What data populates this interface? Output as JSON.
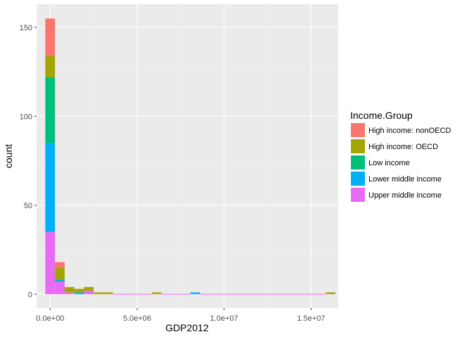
{
  "chart_data": {
    "type": "bar",
    "subtype": "stacked-histogram",
    "xlabel": "GDP2012",
    "ylabel": "count",
    "xlim": [
      -780000,
      16560000
    ],
    "ylim": [
      -7.8,
      163
    ],
    "x_ticks": [
      0,
      5000000,
      10000000,
      15000000
    ],
    "x_tick_labels": [
      "0.0e+00",
      "5.0e+06",
      "1.0e+07",
      "1.5e+07"
    ],
    "y_ticks": [
      0,
      50,
      100,
      150
    ],
    "y_tick_labels": [
      "0",
      "50",
      "100",
      "150"
    ],
    "grid": true,
    "bin_width": 556000,
    "legend": {
      "title": "Income.Group",
      "position": "right",
      "entries": [
        {
          "name": "High income: nonOECD",
          "color": "#F8766D"
        },
        {
          "name": "High income: OECD",
          "color": "#A3A500"
        },
        {
          "name": "Low income",
          "color": "#00BF7D"
        },
        {
          "name": "Lower middle income",
          "color": "#00B0F6"
        },
        {
          "name": "Upper middle income",
          "color": "#E76BF3"
        }
      ]
    },
    "series": [
      {
        "name": "High income: nonOECD",
        "values": [
          21,
          3,
          0,
          0,
          0,
          0,
          0,
          0,
          0,
          0,
          0,
          0,
          0,
          0,
          0,
          0,
          0,
          0,
          0,
          0,
          0,
          0,
          0,
          0,
          0,
          0,
          0,
          0,
          0,
          0
        ]
      },
      {
        "name": "High income: OECD",
        "values": [
          12,
          7,
          3,
          2,
          2,
          1,
          1,
          0,
          0,
          0,
          0,
          1,
          0,
          0,
          0,
          0,
          0,
          0,
          0,
          0,
          0,
          0,
          0,
          0,
          0,
          0,
          0,
          0,
          0,
          1
        ]
      },
      {
        "name": "Low income",
        "values": [
          37,
          0,
          0,
          0,
          0,
          0,
          0,
          0,
          0,
          0,
          0,
          0,
          0,
          0,
          0,
          0,
          0,
          0,
          0,
          0,
          0,
          0,
          0,
          0,
          0,
          0,
          0,
          0,
          0,
          0
        ]
      },
      {
        "name": "Lower middle income",
        "values": [
          50,
          1,
          0,
          1,
          0,
          0,
          0,
          0,
          0,
          0,
          0,
          0,
          0,
          0,
          0,
          1,
          0,
          0,
          0,
          0,
          0,
          0,
          0,
          0,
          0,
          0,
          0,
          0,
          0,
          0
        ]
      },
      {
        "name": "Upper middle income",
        "values": [
          35,
          7,
          1,
          0,
          2,
          0,
          0,
          0,
          0,
          0,
          0,
          0,
          0,
          0,
          0,
          0,
          0,
          0,
          0,
          0,
          0,
          0,
          0,
          0,
          0,
          0,
          0,
          0,
          0,
          0
        ]
      }
    ]
  }
}
